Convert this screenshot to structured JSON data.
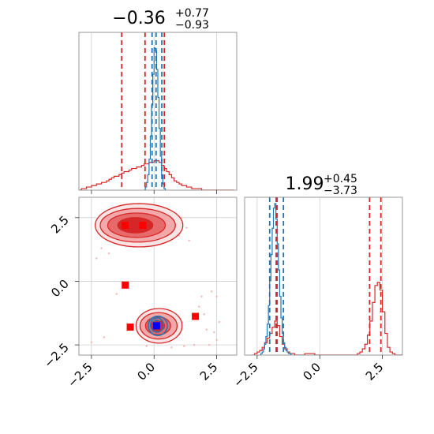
{
  "chart_data": {
    "type": "corner",
    "colors": {
      "red": "#d62728",
      "blue": "#1f77b4",
      "marker_red": "#ff0000",
      "marker_blue": "#0000ff"
    },
    "titles": {
      "param0": {
        "center": "−0.36",
        "plus": "+0.77",
        "minus": "−0.93"
      },
      "param1": {
        "center": "1.99",
        "plus": "+0.45",
        "minus": "−3.73"
      }
    },
    "x_range": [
      -3.0,
      3.3
    ],
    "y_range": [
      -2.9,
      3.3
    ],
    "ticks": [
      -2.5,
      0.0,
      2.5
    ],
    "tick_labels": [
      "−2.5",
      "0.0",
      "2.5"
    ],
    "hist_top": {
      "red_vlines": [
        -1.29,
        -0.36,
        0.41
      ],
      "blue_vlines": [
        -0.08,
        0.08,
        0.31
      ],
      "red_bins": [
        -3.0,
        -2.9,
        -2.8,
        -2.7,
        -2.6,
        -2.5,
        -2.4,
        -2.3,
        -2.2,
        -2.1,
        -2.0,
        -1.9,
        -1.8,
        -1.7,
        -1.6,
        -1.5,
        -1.4,
        -1.3,
        -1.2,
        -1.1,
        -1.0,
        -0.9,
        -0.8,
        -0.7,
        -0.6,
        -0.5,
        -0.4,
        -0.3,
        -0.2,
        -0.1,
        0.0,
        0.1,
        0.2,
        0.3,
        0.4,
        0.5,
        0.6,
        0.7,
        0.8,
        0.9,
        1.0,
        1.1,
        1.2,
        1.3,
        1.4,
        1.5,
        1.6,
        1.7,
        1.8,
        1.9,
        2.0,
        2.1,
        2.2,
        2.3,
        2.4,
        2.5,
        2.6,
        2.7,
        2.8,
        2.9,
        3.0,
        3.1,
        3.2
      ],
      "red_counts": [
        0.0,
        0.01,
        0.01,
        0.02,
        0.02,
        0.03,
        0.03,
        0.04,
        0.04,
        0.05,
        0.05,
        0.06,
        0.07,
        0.08,
        0.09,
        0.09,
        0.1,
        0.11,
        0.12,
        0.12,
        0.13,
        0.14,
        0.14,
        0.15,
        0.15,
        0.16,
        0.17,
        0.17,
        0.18,
        0.18,
        0.19,
        0.19,
        0.18,
        0.16,
        0.14,
        0.12,
        0.1,
        0.08,
        0.06,
        0.05,
        0.04,
        0.03,
        0.03,
        0.02,
        0.02,
        0.01,
        0.01,
        0.01,
        0.01,
        0.0,
        0.0,
        0.0,
        0.0,
        0.0,
        0.0,
        0.0,
        0.0,
        0.0,
        0.0,
        0.0,
        0.0,
        0.0
      ],
      "blue_bins": [
        -0.4,
        -0.35,
        -0.3,
        -0.25,
        -0.2,
        -0.15,
        -0.1,
        -0.05,
        0.0,
        0.05,
        0.1,
        0.15,
        0.2,
        0.25,
        0.3,
        0.35,
        0.4,
        0.45
      ],
      "blue_counts": [
        0.0,
        0.02,
        0.05,
        0.1,
        0.2,
        0.35,
        0.55,
        0.75,
        0.92,
        0.9,
        0.78,
        0.6,
        0.4,
        0.22,
        0.1,
        0.04,
        0.01
      ],
      "ylim": [
        0,
        1.0
      ]
    },
    "hist_right": {
      "red_vlines": [
        -1.74,
        1.99,
        2.44
      ],
      "blue_vlines": [
        -2.0,
        -1.7,
        -1.45
      ],
      "red_bins": [
        -2.7,
        -2.6,
        -2.5,
        -2.4,
        -2.3,
        -2.2,
        -2.1,
        -2.0,
        -1.9,
        -1.8,
        -1.7,
        -1.6,
        -1.5,
        -1.4,
        -1.3,
        -1.2,
        -1.1,
        -1.0,
        -0.9,
        -0.8,
        -0.7,
        -0.6,
        -0.5,
        -0.4,
        -0.3,
        -0.2,
        -0.1,
        0.0,
        0.1,
        0.2,
        0.3,
        0.4,
        0.5,
        0.6,
        0.7,
        0.8,
        0.9,
        1.0,
        1.1,
        1.2,
        1.3,
        1.4,
        1.5,
        1.6,
        1.7,
        1.8,
        1.9,
        2.0,
        2.1,
        2.2,
        2.3,
        2.4,
        2.5,
        2.6,
        2.7,
        2.8,
        2.9,
        3.0,
        3.1,
        3.2,
        3.3
      ],
      "red_counts": [
        0.0,
        0.01,
        0.02,
        0.03,
        0.05,
        0.08,
        0.11,
        0.14,
        0.18,
        0.22,
        0.19,
        0.12,
        0.07,
        0.04,
        0.02,
        0.01,
        0.01,
        0.0,
        0.0,
        0.0,
        0.0,
        0.01,
        0.01,
        0.01,
        0.01,
        0.0,
        0.0,
        0.0,
        0.0,
        0.0,
        0.0,
        0.0,
        0.0,
        0.0,
        0.0,
        0.0,
        0.0,
        0.0,
        0.0,
        0.0,
        0.0,
        0.0,
        0.01,
        0.02,
        0.04,
        0.07,
        0.13,
        0.22,
        0.34,
        0.45,
        0.47,
        0.42,
        0.28,
        0.14,
        0.05,
        0.02,
        0.01,
        0.0,
        0.0,
        0.0
      ],
      "blue_bins": [
        -2.4,
        -2.35,
        -2.3,
        -2.25,
        -2.2,
        -2.15,
        -2.1,
        -2.05,
        -2.0,
        -1.95,
        -1.9,
        -1.85,
        -1.8,
        -1.75,
        -1.7,
        -1.65,
        -1.6,
        -1.55,
        -1.5,
        -1.45,
        -1.4,
        -1.35,
        -1.3,
        -1.25,
        -1.2,
        -1.15,
        -1.1
      ],
      "blue_counts": [
        0.0,
        0.01,
        0.02,
        0.04,
        0.07,
        0.12,
        0.2,
        0.32,
        0.48,
        0.65,
        0.82,
        0.95,
        0.98,
        0.88,
        0.72,
        0.55,
        0.38,
        0.24,
        0.14,
        0.08,
        0.05,
        0.03,
        0.02,
        0.01,
        0.01,
        0.0
      ],
      "ylim": [
        0,
        1.0
      ]
    },
    "joint": {
      "red_contour_levels": [
        {
          "cx": -0.6,
          "cy": 2.2,
          "rx": 1.75,
          "ry": 0.85,
          "fill": "#fbe4e4",
          "stroke": "#d62728"
        },
        {
          "cx": -0.65,
          "cy": 2.2,
          "rx": 1.5,
          "ry": 0.66,
          "fill": "#f3a9a9",
          "stroke": "#d62728"
        },
        {
          "cx": -0.7,
          "cy": 2.2,
          "rx": 1.15,
          "ry": 0.48,
          "fill": "#e66a6a",
          "stroke": "#d62728"
        },
        {
          "cx": -0.75,
          "cy": 2.2,
          "rx": 0.7,
          "ry": 0.3,
          "fill": "#d62728",
          "stroke": "#d62728"
        },
        {
          "cx": 0.2,
          "cy": -1.75,
          "rx": 0.92,
          "ry": 0.68,
          "fill": "#fbe4e4",
          "stroke": "#d62728"
        },
        {
          "cx": 0.18,
          "cy": -1.75,
          "rx": 0.74,
          "ry": 0.52,
          "fill": "#f3a9a9",
          "stroke": "#d62728"
        },
        {
          "cx": 0.16,
          "cy": -1.75,
          "rx": 0.5,
          "ry": 0.35,
          "fill": "#e66a6a",
          "stroke": "#d62728"
        },
        {
          "cx": 0.14,
          "cy": -1.75,
          "rx": 0.28,
          "ry": 0.2,
          "fill": "#d62728",
          "stroke": "#d62728"
        }
      ],
      "blue_contour_levels": [
        {
          "cx": 0.15,
          "cy": -1.75,
          "rx": 0.38,
          "ry": 0.38
        },
        {
          "cx": 0.12,
          "cy": -1.72,
          "rx": 0.26,
          "ry": 0.28
        },
        {
          "cx": 0.1,
          "cy": -1.7,
          "rx": 0.14,
          "ry": 0.17
        }
      ],
      "red_markers": [
        {
          "x": -1.15,
          "y": 2.2
        },
        {
          "x": -0.45,
          "y": 2.2
        },
        {
          "x": -1.15,
          "y": -0.15
        },
        {
          "x": -0.95,
          "y": -1.8
        },
        {
          "x": 1.65,
          "y": -1.38
        }
      ],
      "blue_marker": {
        "x": 0.1,
        "y": -1.75
      },
      "scatter": [
        {
          "x": 1.1,
          "y": 2.5
        },
        {
          "x": 1.3,
          "y": 2.1
        },
        {
          "x": 1.0,
          "y": 1.8
        },
        {
          "x": 1.4,
          "y": 1.6
        },
        {
          "x": -2.1,
          "y": 1.3
        },
        {
          "x": -1.8,
          "y": 1.1
        },
        {
          "x": -2.3,
          "y": 0.9
        },
        {
          "x": 1.8,
          "y": -1.0
        },
        {
          "x": 2.0,
          "y": -1.3
        },
        {
          "x": 2.1,
          "y": -1.9
        },
        {
          "x": 2.4,
          "y": -2.0
        },
        {
          "x": 2.5,
          "y": -2.3
        },
        {
          "x": 2.2,
          "y": -2.5
        },
        {
          "x": 1.9,
          "y": -0.6
        },
        {
          "x": 2.3,
          "y": -0.4
        },
        {
          "x": 2.5,
          "y": -0.6
        },
        {
          "x": 2.6,
          "y": -1.6
        },
        {
          "x": -1.5,
          "y": -0.5
        },
        {
          "x": -2.0,
          "y": -2.2
        },
        {
          "x": -2.5,
          "y": -2.4
        },
        {
          "x": 1.2,
          "y": -2.55
        },
        {
          "x": 0.7,
          "y": -2.6
        },
        {
          "x": -0.3,
          "y": -2.55
        },
        {
          "x": 1.6,
          "y": -2.5
        }
      ]
    }
  }
}
